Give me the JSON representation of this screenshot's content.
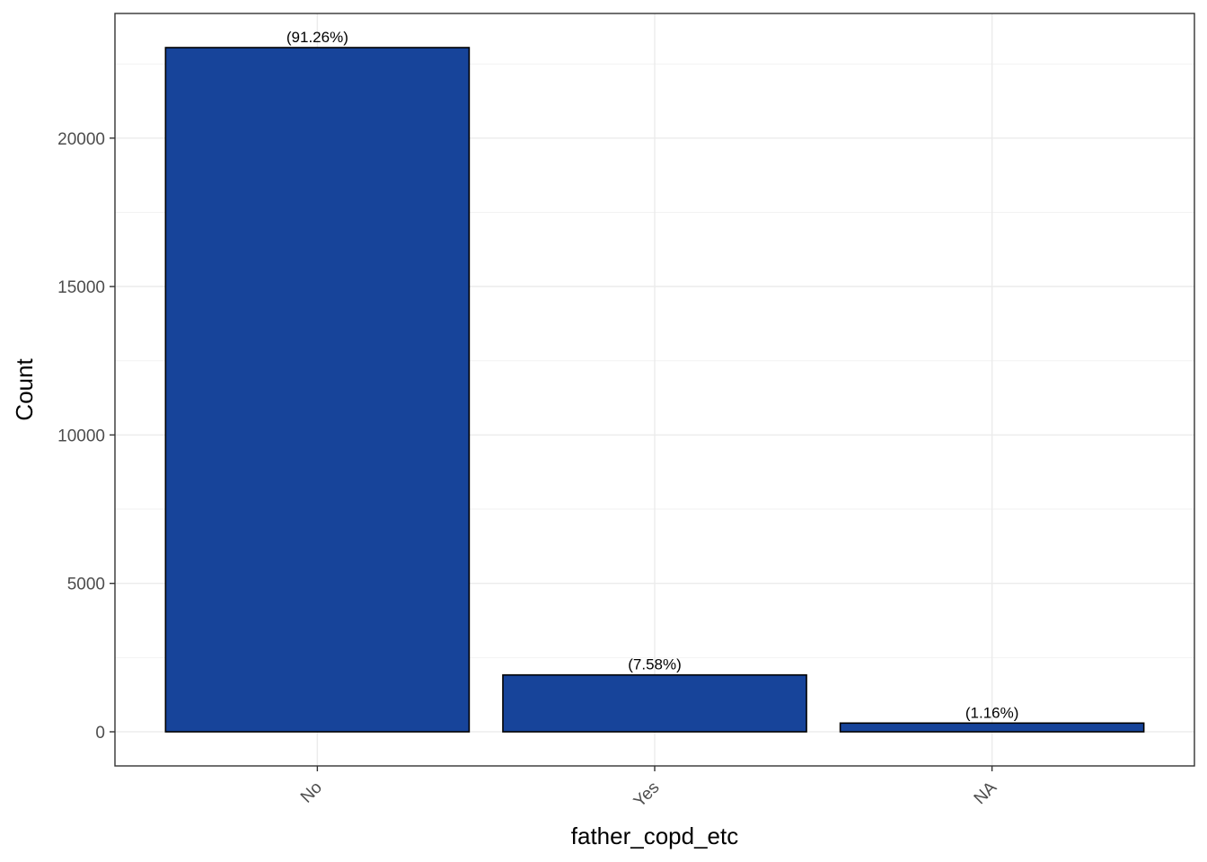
{
  "chart_data": {
    "type": "bar",
    "title": "",
    "xlabel": "father_copd_etc",
    "ylabel": "Count",
    "categories": [
      "No",
      "Yes",
      "NA"
    ],
    "values": [
      23050,
      1915,
      293
    ],
    "data_labels": [
      "(91.26%)",
      "(7.58%)",
      "(1.16%)"
    ],
    "ylim": [
      -1150,
      24200
    ],
    "yticks": [
      0,
      5000,
      10000,
      15000,
      20000
    ],
    "ytick_labels": [
      "0",
      "5000",
      "10000",
      "15000",
      "20000"
    ],
    "grid": true,
    "legend": "none",
    "colors": {
      "bar_fill": "#17449A",
      "bar_stroke": "#000000",
      "grid_major": "#EBEBEB",
      "grid_minor": "#F2F2F2",
      "panel_border": "#333333"
    }
  }
}
